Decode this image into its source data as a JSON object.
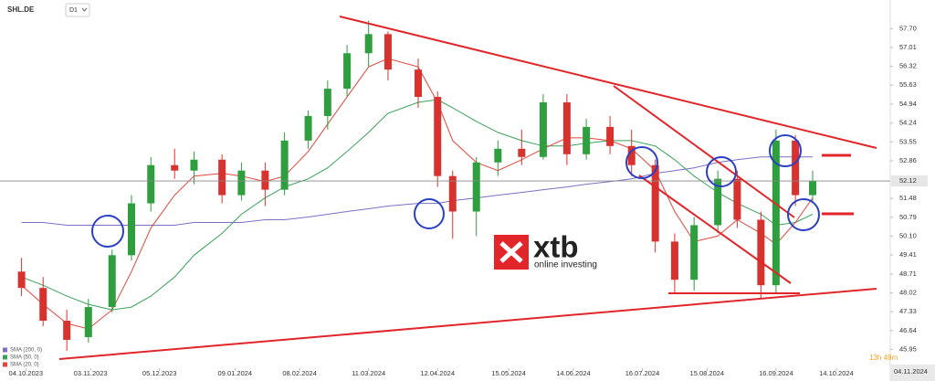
{
  "chart_data": {
    "type": "candlestick",
    "title": "SHL.DE",
    "timeframe": "D1",
    "x": [
      "02.10.2023",
      "12.10.2023",
      "23.10.2023",
      "02.11.2023",
      "13.11.2023",
      "22.11.2023",
      "01.12.2023",
      "12.12.2023",
      "21.12.2023",
      "03.01.2024",
      "12.01.2024",
      "23.01.2024",
      "01.02.2024",
      "12.02.2024",
      "21.02.2024",
      "01.03.2024",
      "11.03.2024",
      "20.03.2024",
      "03.04.2024",
      "12.04.2024",
      "19.04.2024",
      "30.04.2024",
      "10.05.2024",
      "21.05.2024",
      "31.05.2024",
      "11.06.2024",
      "20.06.2024",
      "01.07.2024",
      "11.07.2024",
      "22.07.2024",
      "31.07.2024",
      "09.08.2024",
      "20.08.2024",
      "29.08.2024",
      "09.09.2024",
      "16.09.2024",
      "25.09.2024",
      "03.10.2024"
    ],
    "open": [
      48.8,
      48.2,
      47.0,
      46.4,
      47.5,
      49.4,
      51.3,
      52.7,
      52.5,
      52.9,
      51.6,
      52.5,
      51.8,
      53.6,
      54.5,
      55.5,
      56.8,
      57.5,
      56.2,
      55.2,
      52.3,
      51.0,
      52.8,
      53.3,
      53.0,
      55.0,
      53.1,
      54.1,
      53.4,
      52.7,
      49.9,
      48.5,
      50.5,
      52.2,
      50.7,
      48.3,
      53.6,
      51.6
    ],
    "high": [
      49.3,
      48.6,
      47.4,
      47.8,
      49.6,
      51.6,
      53.0,
      53.3,
      53.2,
      53.1,
      52.8,
      52.8,
      53.9,
      54.7,
      55.8,
      57.1,
      58.0,
      57.6,
      56.6,
      55.4,
      52.5,
      53.0,
      53.6,
      54.0,
      55.3,
      55.3,
      54.4,
      54.5,
      54.0,
      52.9,
      50.2,
      50.8,
      52.5,
      52.5,
      51.0,
      54.0,
      53.8,
      52.5
    ],
    "low": [
      47.9,
      46.8,
      45.9,
      46.2,
      47.3,
      49.2,
      51.0,
      52.2,
      52.0,
      51.3,
      51.4,
      51.2,
      51.6,
      53.3,
      54.0,
      55.2,
      56.3,
      55.8,
      54.8,
      51.9,
      50.0,
      50.1,
      52.3,
      52.7,
      52.9,
      52.7,
      52.9,
      53.1,
      52.3,
      49.5,
      48.0,
      48.1,
      50.2,
      50.4,
      47.8,
      48.0,
      51.2,
      51.3
    ],
    "close": [
      48.2,
      47.0,
      46.3,
      47.5,
      49.4,
      51.3,
      52.7,
      52.5,
      52.9,
      51.6,
      52.5,
      51.8,
      53.6,
      54.5,
      55.5,
      56.8,
      57.5,
      56.2,
      55.2,
      52.3,
      51.0,
      52.8,
      53.3,
      53.0,
      55.0,
      53.1,
      54.1,
      53.4,
      52.7,
      49.9,
      48.5,
      50.5,
      52.2,
      50.7,
      48.3,
      53.6,
      51.6,
      52.12
    ],
    "up_color": "#2e9e3e",
    "down_color": "#d8322f",
    "series": [
      {
        "name": "SMA (200, 0)",
        "color": "#7b6fc4",
        "values": [
          50.6,
          50.6,
          50.5,
          50.5,
          50.5,
          50.5,
          50.5,
          50.5,
          50.6,
          50.6,
          50.6,
          50.7,
          50.7,
          50.8,
          50.9,
          51.0,
          51.1,
          51.2,
          51.3,
          51.3,
          51.4,
          51.5,
          51.6,
          51.7,
          51.8,
          51.9,
          52.0,
          52.1,
          52.2,
          52.4,
          52.5,
          52.6,
          52.8,
          52.9,
          53.0,
          53.0,
          53.0,
          53.0
        ]
      },
      {
        "name": "SMA (50, 0)",
        "color": "#3aa05a",
        "values": [
          48.6,
          48.3,
          47.9,
          47.6,
          47.4,
          47.5,
          47.9,
          48.6,
          49.4,
          50.2,
          50.9,
          51.5,
          51.9,
          52.2,
          52.6,
          53.2,
          53.9,
          54.6,
          55.0,
          55.1,
          54.8,
          54.3,
          53.9,
          53.6,
          53.4,
          53.4,
          53.5,
          53.6,
          53.6,
          53.4,
          52.9,
          52.3,
          51.7,
          51.3,
          50.9,
          50.5,
          50.6,
          50.9
        ]
      },
      {
        "name": "SMA (20, 0)",
        "color": "#e0463c",
        "values": [
          48.3,
          47.6,
          46.9,
          46.7,
          47.4,
          48.8,
          50.4,
          51.6,
          52.3,
          52.4,
          52.3,
          52.1,
          52.3,
          53.2,
          54.2,
          55.2,
          56.3,
          56.6,
          56.3,
          55.0,
          53.6,
          52.8,
          52.5,
          52.9,
          53.3,
          53.7,
          53.7,
          53.6,
          53.3,
          52.5,
          51.0,
          49.9,
          50.1,
          50.7,
          50.2,
          49.8,
          50.6,
          51.5
        ]
      }
    ],
    "legend": "lower left",
    "xlim": [
      "22.09.2023",
      "08.11.2024"
    ],
    "xticks": [
      "04.10.2023",
      "03.11.2023",
      "05.12.2023",
      "09.01.2024",
      "08.02.2024",
      "11.03.2024",
      "12.04.2024",
      "15.05.2024",
      "14.06.2024",
      "16.07.2024",
      "15.08.2024",
      "16.09.2024",
      "14.10.2024"
    ],
    "ylim": [
      45.26,
      58.75
    ],
    "yticks": [
      {
        "value": 57.7,
        "label": "57.70"
      },
      57.01,
      56.32,
      55.63,
      54.94,
      54.24,
      53.55,
      52.86,
      51.48,
      50.79,
      {
        "value": 50.1,
        "label": "50.10"
      },
      49.41,
      48.71,
      48.02,
      47.33,
      46.64,
      45.95,
      45.26
    ],
    "grid": false,
    "cursor_date": "04.11.2024",
    "countdown": "13h 49m",
    "watermark": {
      "brand": "xtb",
      "tagline": "online investing"
    }
  }
}
